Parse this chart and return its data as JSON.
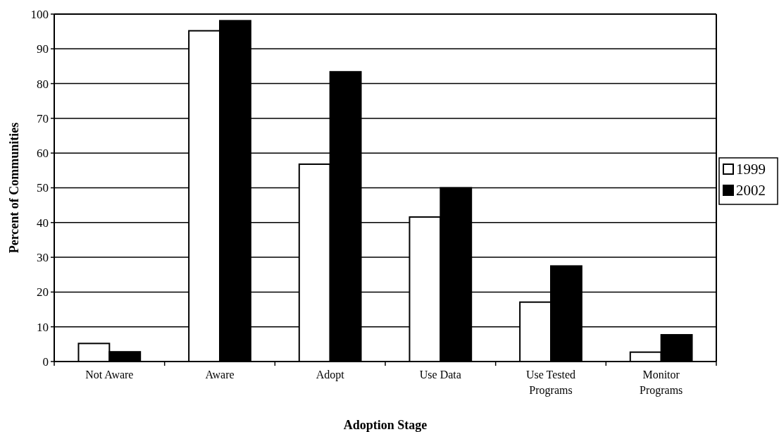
{
  "chart_data": {
    "type": "bar",
    "xlabel": "Adoption Stage",
    "ylabel": "Percent of Communities",
    "categories": [
      "Not Aware",
      "Aware",
      "Adopt",
      "Use Data",
      "Use Tested Programs",
      "Monitor Programs"
    ],
    "series": [
      {
        "name": "1999",
        "color": "#ffffff",
        "values": [
          5.2,
          95.2,
          56.8,
          41.6,
          17.1,
          2.7
        ]
      },
      {
        "name": "2002",
        "color": "#000000",
        "values": [
          2.8,
          98.1,
          83.4,
          50,
          27.5,
          7.7
        ]
      }
    ],
    "ylim": [
      0,
      100
    ],
    "yticks": [
      0,
      10,
      20,
      30,
      40,
      50,
      60,
      70,
      80,
      90,
      100
    ],
    "grid": "y",
    "legend": "right"
  }
}
